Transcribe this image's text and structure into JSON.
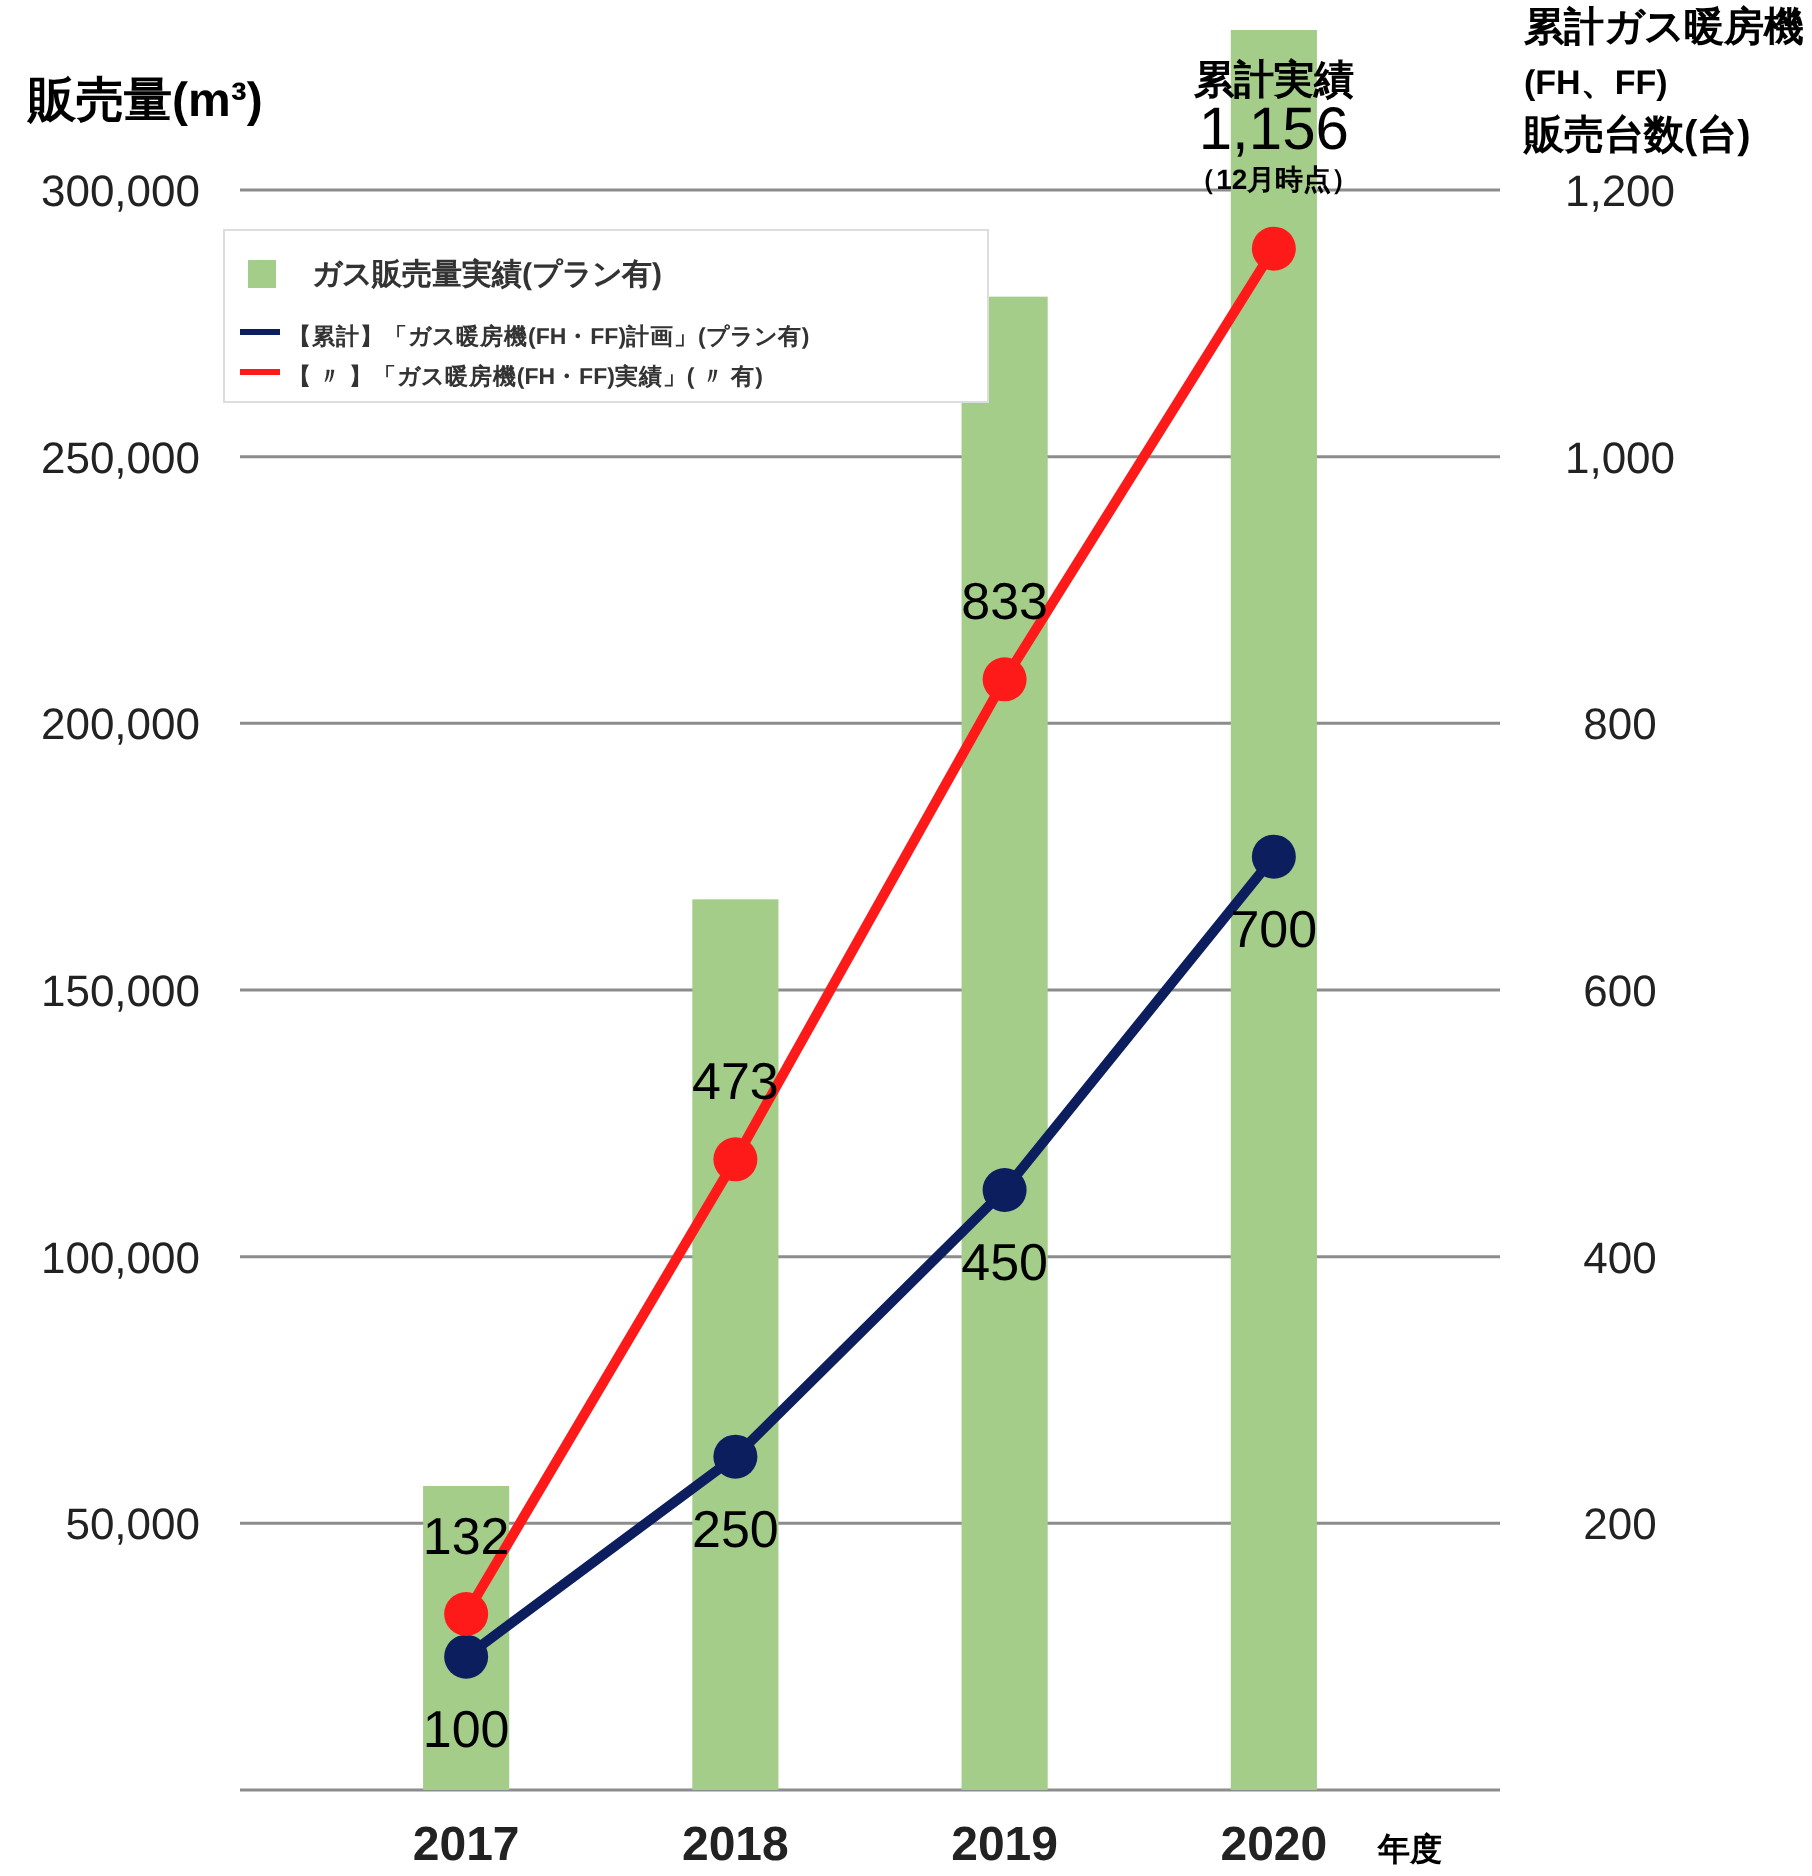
{
  "chart_data": {
    "type": "bar",
    "ylabel": "販売量(m³)",
    "y2label": "累計ガス暖房機\n(FH、FF)\n販売台数(台)",
    "xlabel": "年度",
    "categories": [
      "2017",
      "2018",
      "2019",
      "2020"
    ],
    "series": [
      {
        "name": "ガス販売量実績(プラン有)",
        "color": "#a5cd8a",
        "values": [
          57000,
          167000,
          280000,
          330000
        ]
      },
      {
        "name": "【累計】「ガス暖房機(FH・FF)計画」(プラン有)",
        "type": "line",
        "axis": "y2",
        "color": "#0d1e5e",
        "values": [
          100,
          250,
          450,
          700
        ],
        "value_labels": [
          "100",
          "250",
          "450",
          "700"
        ]
      },
      {
        "name": "【 〃 】「ガス暖房機(FH・FF)実績」( 〃 有)",
        "type": "line",
        "axis": "y2",
        "color": "#ff1a1a",
        "values": [
          132,
          473,
          833,
          1156
        ],
        "value_labels": [
          "132",
          "473",
          "833",
          "1,156"
        ]
      }
    ],
    "ylim": [
      0,
      330000
    ],
    "yticks": [
      {
        "value": 50000,
        "label": "50,000"
      },
      {
        "value": 100000,
        "label": "100,000"
      },
      {
        "value": 150000,
        "label": "150,000"
      },
      {
        "value": 200000,
        "label": "200,000"
      },
      {
        "value": 250000,
        "label": "250,000"
      },
      {
        "value": 300000,
        "label": "300,000"
      }
    ],
    "y2lim": [
      0,
      1320
    ],
    "y2ticks": [
      200,
      400,
      600,
      800,
      {
        "value": 1000,
        "label": "1,000"
      },
      {
        "value": 1200,
        "label": "1,200"
      }
    ],
    "annotations": [
      "累計実績",
      "（12月時点）"
    ],
    "grid": "y",
    "legend": "top left",
    "marker": "circle",
    "line_style": "solid"
  }
}
